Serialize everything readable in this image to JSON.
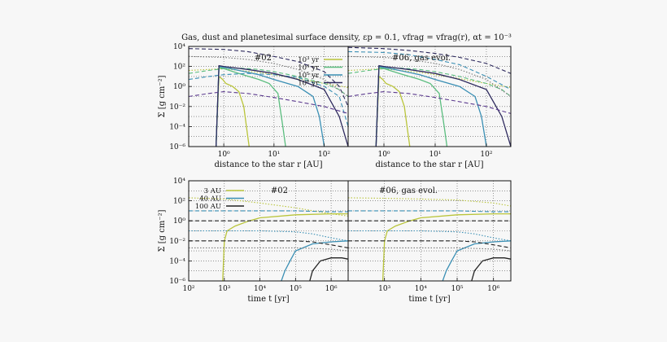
{
  "figure": {
    "title": "Gas, dust and planetesimal surface density, εp = 0.1, vfrag = vfrag(r), αt = 10⁻³"
  },
  "chart_data": [
    {
      "type": "line",
      "panel": "top-left",
      "annotation": "#02",
      "xlabel": "distance to the star r [AU]",
      "ylabel": "Σ [g cm⁻²]",
      "xscale": "log",
      "yscale": "log",
      "xlim": [
        0.2,
        300
      ],
      "ylim": [
        1e-06,
        10000.0
      ],
      "xticks": [
        {
          "v": 1,
          "label": "10⁰"
        },
        {
          "v": 10,
          "label": "10¹"
        },
        {
          "v": 100,
          "label": "10²"
        }
      ],
      "yticks": [
        {
          "v": 10000.0,
          "label": "10⁴"
        },
        {
          "v": 100.0,
          "label": "10²"
        },
        {
          "v": 1,
          "label": "10⁰"
        },
        {
          "v": 0.01,
          "label": "10⁻²"
        },
        {
          "v": 0.0001,
          "label": "10⁻⁴"
        },
        {
          "v": 1e-06,
          "label": "10⁻⁶"
        }
      ],
      "grid": true,
      "legend": {
        "position": "top-right",
        "entries": [
          {
            "name": "10³ yr",
            "color": "#b9c43a"
          },
          {
            "name": "10⁴ yr",
            "color": "#5bbd7f"
          },
          {
            "name": "10⁵ yr",
            "color": "#3a8fb4"
          },
          {
            "name": "10⁶ yr",
            "color": "#2e2a5e"
          }
        ]
      },
      "series": [
        {
          "color": "#b9c43a",
          "dash": "solid",
          "x": [
            0.7,
            0.8,
            0.95,
            1.1,
            1.5,
            2,
            2.5,
            3,
            3.2
          ],
          "y": [
            1e-06,
            10,
            5,
            2,
            1,
            0.3,
            0.01,
            1e-05,
            1e-06
          ]
        },
        {
          "color": "#b9c43a",
          "dash": "dot",
          "x": [
            0.2,
            0.5,
            1,
            2,
            5,
            10,
            30,
            100,
            300
          ],
          "y": [
            40,
            50,
            60,
            40,
            25,
            15,
            6,
            2,
            0.8
          ]
        },
        {
          "color": "#5bbd7f",
          "dash": "solid",
          "x": [
            0.7,
            0.8,
            1,
            2,
            5,
            8,
            12,
            15,
            17
          ],
          "y": [
            1e-06,
            80,
            60,
            20,
            5,
            2,
            0.2,
            0.0001,
            1e-06
          ]
        },
        {
          "color": "#5bbd7f",
          "dash": "dash",
          "x": [
            0.2,
            0.5,
            1,
            2,
            5,
            10,
            30,
            100,
            200,
            300
          ],
          "y": [
            20,
            40,
            60,
            70,
            50,
            30,
            10,
            2,
            0.5,
            0.1
          ]
        },
        {
          "color": "#3a8fb4",
          "dash": "solid",
          "x": [
            0.7,
            0.8,
            1,
            2,
            5,
            10,
            30,
            60,
            80,
            100
          ],
          "y": [
            1e-06,
            100,
            80,
            40,
            15,
            5,
            1,
            0.1,
            0.001,
            1e-06
          ]
        },
        {
          "color": "#3a8fb4",
          "dash": "dash",
          "x": [
            0.2,
            0.5,
            1,
            3,
            10,
            30,
            100,
            200,
            300
          ],
          "y": [
            5,
            10,
            15,
            20,
            15,
            8,
            1,
            0.1,
            0.0001
          ]
        },
        {
          "color": "#2e2a5e",
          "dash": "solid",
          "x": [
            0.7,
            0.8,
            1,
            3,
            10,
            30,
            100,
            200,
            300
          ],
          "y": [
            1e-06,
            120,
            100,
            50,
            20,
            5,
            0.5,
            0.001,
            1e-06
          ]
        },
        {
          "color": "#2e2a5e",
          "dash": "dash",
          "x": [
            0.2,
            1,
            3,
            10,
            30,
            100,
            200,
            300
          ],
          "y": [
            6000,
            5000,
            3000,
            1000,
            300,
            30,
            1,
            0.01
          ]
        },
        {
          "color": "#5b3a8e",
          "dash": "dash",
          "x": [
            0.2,
            0.5,
            1,
            3,
            10,
            30,
            100,
            300
          ],
          "y": [
            0.1,
            0.2,
            0.3,
            0.2,
            0.08,
            0.03,
            0.01,
            0.002
          ]
        },
        {
          "color": "#777777",
          "dash": "dot",
          "x": [
            0.2,
            1,
            3,
            10,
            30,
            100,
            300
          ],
          "y": [
            1000,
            800,
            500,
            200,
            50,
            5,
            0.1
          ]
        }
      ]
    },
    {
      "type": "line",
      "panel": "top-right",
      "annotation": "#06, gas evol.",
      "xlabel": "distance to the star r [AU]",
      "xscale": "log",
      "yscale": "log",
      "xlim": [
        0.2,
        300
      ],
      "ylim": [
        1e-06,
        10000.0
      ],
      "xticks": [
        {
          "v": 1,
          "label": "10⁰"
        },
        {
          "v": 10,
          "label": "10¹"
        },
        {
          "v": 100,
          "label": "10²"
        }
      ],
      "grid": true,
      "series": [
        {
          "color": "#b9c43a",
          "dash": "solid",
          "x": [
            0.7,
            0.8,
            0.95,
            1.1,
            1.5,
            2,
            2.5,
            3,
            3.2
          ],
          "y": [
            1e-06,
            10,
            5,
            2,
            1,
            0.3,
            0.01,
            1e-05,
            1e-06
          ]
        },
        {
          "color": "#b9c43a",
          "dash": "dot",
          "x": [
            0.2,
            0.5,
            1,
            2,
            5,
            10,
            30,
            100,
            300
          ],
          "y": [
            40,
            50,
            60,
            40,
            25,
            15,
            6,
            2,
            0.8
          ]
        },
        {
          "color": "#5bbd7f",
          "dash": "solid",
          "x": [
            0.7,
            0.8,
            1,
            2,
            5,
            8,
            12,
            15,
            17
          ],
          "y": [
            1e-06,
            80,
            60,
            20,
            5,
            2,
            0.2,
            0.0001,
            1e-06
          ]
        },
        {
          "color": "#5bbd7f",
          "dash": "dash",
          "x": [
            0.2,
            0.5,
            1,
            2,
            5,
            10,
            30,
            100,
            200,
            300
          ],
          "y": [
            20,
            40,
            60,
            70,
            50,
            30,
            10,
            2,
            0.5,
            0.1
          ]
        },
        {
          "color": "#3a8fb4",
          "dash": "solid",
          "x": [
            0.7,
            0.8,
            1,
            2,
            5,
            10,
            30,
            60,
            80,
            100
          ],
          "y": [
            1e-06,
            100,
            80,
            40,
            15,
            5,
            1,
            0.1,
            0.001,
            1e-06
          ]
        },
        {
          "color": "#3a8fb4",
          "dash": "dash",
          "x": [
            0.2,
            1,
            3,
            10,
            30,
            100,
            300
          ],
          "y": [
            3000,
            2500,
            1500,
            500,
            150,
            10,
            0.5
          ]
        },
        {
          "color": "#2e2a5e",
          "dash": "solid",
          "x": [
            0.7,
            0.8,
            1,
            3,
            10,
            30,
            100,
            200,
            300
          ],
          "y": [
            1e-06,
            120,
            100,
            50,
            20,
            5,
            0.5,
            0.001,
            1e-06
          ]
        },
        {
          "color": "#2e2a5e",
          "dash": "dash",
          "x": [
            0.2,
            1,
            3,
            10,
            30,
            100,
            300
          ],
          "y": [
            8000,
            6000,
            4000,
            2000,
            800,
            200,
            20
          ]
        },
        {
          "color": "#5b3a8e",
          "dash": "dash",
          "x": [
            0.2,
            0.5,
            1,
            3,
            10,
            30,
            100,
            300
          ],
          "y": [
            0.1,
            0.2,
            0.3,
            0.2,
            0.08,
            0.03,
            0.01,
            0.002
          ]
        },
        {
          "color": "#777777",
          "dash": "dot",
          "x": [
            0.2,
            1,
            3,
            10,
            30,
            100,
            300
          ],
          "y": [
            1000,
            800,
            500,
            200,
            50,
            5,
            0.1
          ]
        }
      ]
    },
    {
      "type": "line",
      "panel": "bottom-left",
      "annotation": "#02",
      "xlabel": "time t [yr]",
      "ylabel": "Σ [g cm⁻²]",
      "xscale": "log",
      "yscale": "log",
      "xlim": [
        100,
        3000000.0
      ],
      "ylim": [
        1e-06,
        10000.0
      ],
      "xticks": [
        {
          "v": 100,
          "label": "10²"
        },
        {
          "v": 1000,
          "label": "10³"
        },
        {
          "v": 10000,
          "label": "10⁴"
        },
        {
          "v": 100000,
          "label": "10⁵"
        },
        {
          "v": 1000000,
          "label": "10⁶"
        }
      ],
      "yticks": [
        {
          "v": 10000.0,
          "label": "10⁴"
        },
        {
          "v": 100.0,
          "label": "10²"
        },
        {
          "v": 1,
          "label": "10⁰"
        },
        {
          "v": 0.01,
          "label": "10⁻²"
        },
        {
          "v": 0.0001,
          "label": "10⁻⁴"
        },
        {
          "v": 1e-06,
          "label": "10⁻⁶"
        }
      ],
      "grid": true,
      "legend": {
        "position": "top-left",
        "entries": [
          {
            "name": "3 AU",
            "color": "#b9c43a"
          },
          {
            "name": "40 AU",
            "color": "#3a8fb4"
          },
          {
            "name": "100 AU",
            "color": "#222222"
          }
        ]
      },
      "series": [
        {
          "color": "#b9c43a",
          "dash": "solid",
          "x": [
            900,
            1000,
            1200,
            2000,
            5000,
            10000,
            100000,
            1000000,
            3000000
          ],
          "y": [
            1e-06,
            0.01,
            0.1,
            0.3,
            1,
            2,
            4,
            5,
            5
          ]
        },
        {
          "color": "#b9c43a",
          "dash": "dot",
          "x": [
            100,
            1000,
            10000,
            100000,
            1000000,
            3000000
          ],
          "y": [
            200,
            150,
            60,
            20,
            5,
            3
          ]
        },
        {
          "color": "#3a8fb4",
          "dash": "solid",
          "x": [
            40000,
            50000,
            70000,
            100000,
            300000,
            1000000,
            3000000
          ],
          "y": [
            1e-06,
            1e-05,
            0.0001,
            0.001,
            0.005,
            0.008,
            0.01
          ]
        },
        {
          "color": "#3a8fb4",
          "dash": "dash",
          "x": [
            100,
            10000,
            100000,
            300000,
            1000000,
            3000000
          ],
          "y": [
            10,
            10,
            10,
            9,
            8,
            8
          ]
        },
        {
          "color": "#3a8fb4",
          "dash": "dot",
          "x": [
            100,
            10000,
            100000,
            300000,
            1000000,
            3000000
          ],
          "y": [
            0.1,
            0.1,
            0.08,
            0.05,
            0.02,
            0.01
          ]
        },
        {
          "color": "#222222",
          "dash": "solid",
          "x": [
            250000,
            300000,
            500000,
            1000000,
            2000000,
            3000000
          ],
          "y": [
            1e-06,
            1e-05,
            0.0001,
            0.0002,
            0.0002,
            0.00015
          ]
        },
        {
          "color": "#222222",
          "dash": "dash",
          "x": [
            100,
            10000,
            100000,
            1000000,
            3000000
          ],
          "y": [
            1,
            1,
            1,
            1,
            1
          ]
        },
        {
          "color": "#222222",
          "dash": "dash",
          "x": [
            100,
            10000,
            100000,
            300000,
            1000000,
            3000000
          ],
          "y": [
            0.01,
            0.01,
            0.01,
            0.008,
            0.004,
            0.002
          ]
        },
        {
          "color": "#777777",
          "dash": "dot",
          "x": [
            100,
            10000,
            100000,
            1000000,
            3000000
          ],
          "y": [
            0.002,
            0.002,
            0.002,
            0.0015,
            0.001
          ]
        }
      ]
    },
    {
      "type": "line",
      "panel": "bottom-right",
      "annotation": "#06, gas evol.",
      "xlabel": "time t [yr]",
      "xscale": "log",
      "yscale": "log",
      "xlim": [
        100,
        3000000.0
      ],
      "ylim": [
        1e-06,
        10000.0
      ],
      "xticks": [
        {
          "v": 1000,
          "label": "10³"
        },
        {
          "v": 10000,
          "label": "10⁴"
        },
        {
          "v": 100000,
          "label": "10⁵"
        },
        {
          "v": 1000000,
          "label": "10⁶"
        }
      ],
      "grid": true,
      "series": [
        {
          "color": "#b9c43a",
          "dash": "solid",
          "x": [
            900,
            1000,
            1200,
            2000,
            5000,
            10000,
            100000,
            1000000,
            3000000
          ],
          "y": [
            1e-06,
            0.01,
            0.1,
            0.3,
            1,
            2,
            4,
            5,
            5
          ]
        },
        {
          "color": "#b9c43a",
          "dash": "dot",
          "x": [
            100,
            1000,
            10000,
            100000,
            1000000,
            3000000
          ],
          "y": [
            200,
            180,
            150,
            120,
            60,
            30
          ]
        },
        {
          "color": "#3a8fb4",
          "dash": "solid",
          "x": [
            40000,
            50000,
            70000,
            100000,
            300000,
            1000000,
            3000000
          ],
          "y": [
            1e-06,
            1e-05,
            0.0001,
            0.001,
            0.005,
            0.008,
            0.01
          ]
        },
        {
          "color": "#3a8fb4",
          "dash": "dash",
          "x": [
            100,
            10000,
            100000,
            300000,
            1000000,
            3000000
          ],
          "y": [
            10,
            10,
            10,
            9,
            8,
            8
          ]
        },
        {
          "color": "#3a8fb4",
          "dash": "dot",
          "x": [
            100,
            10000,
            100000,
            300000,
            1000000,
            3000000
          ],
          "y": [
            0.1,
            0.1,
            0.08,
            0.05,
            0.02,
            0.01
          ]
        },
        {
          "color": "#222222",
          "dash": "solid",
          "x": [
            250000,
            300000,
            500000,
            1000000,
            2000000,
            3000000
          ],
          "y": [
            1e-06,
            1e-05,
            0.0001,
            0.0002,
            0.0002,
            0.00015
          ]
        },
        {
          "color": "#222222",
          "dash": "dash",
          "x": [
            100,
            10000,
            100000,
            1000000,
            3000000
          ],
          "y": [
            1,
            1,
            1,
            1,
            1
          ]
        },
        {
          "color": "#222222",
          "dash": "dash",
          "x": [
            100,
            10000,
            100000,
            300000,
            1000000,
            3000000
          ],
          "y": [
            0.01,
            0.01,
            0.01,
            0.008,
            0.004,
            0.002
          ]
        },
        {
          "color": "#777777",
          "dash": "dot",
          "x": [
            100,
            10000,
            100000,
            1000000,
            3000000
          ],
          "y": [
            0.002,
            0.002,
            0.002,
            0.0015,
            0.001
          ]
        }
      ]
    }
  ]
}
